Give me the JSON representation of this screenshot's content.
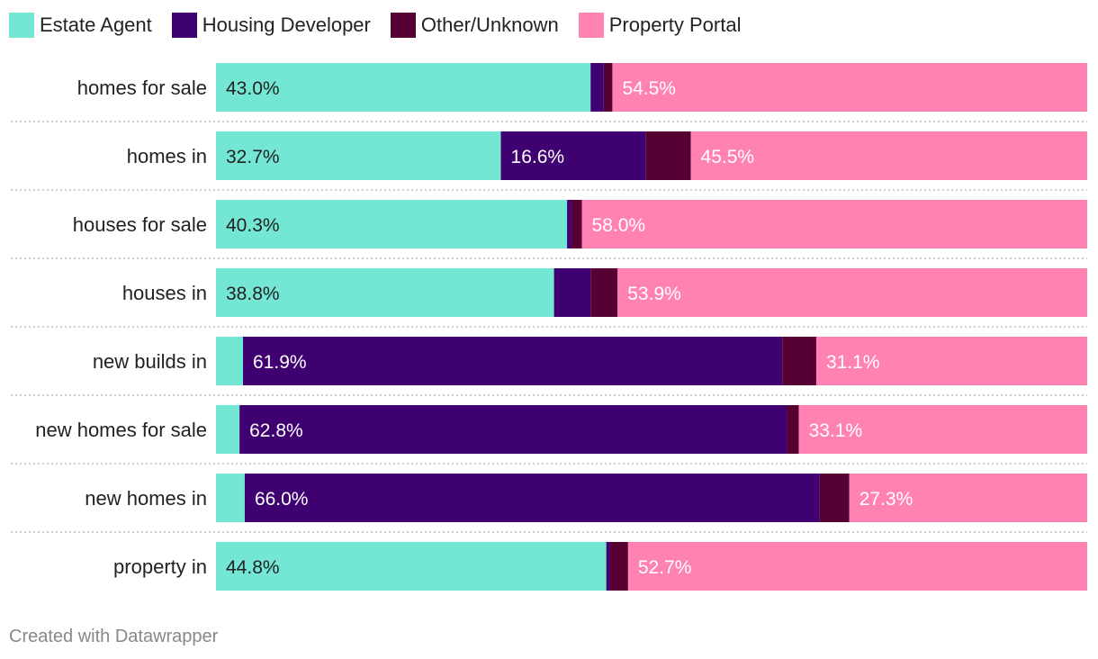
{
  "chart_data": {
    "type": "bar",
    "orientation": "horizontal",
    "stacked": true,
    "normalized": true,
    "xlim": [
      0,
      100
    ],
    "unit": "%",
    "categories": [
      "homes for sale",
      "homes in",
      "houses for sale",
      "houses in",
      "new builds in",
      "new homes for sale",
      "new homes in",
      "property in"
    ],
    "series": [
      {
        "name": "Estate Agent",
        "color": "#74e7d4",
        "text_color": "#222222",
        "values": [
          43.0,
          32.7,
          40.3,
          38.8,
          3.1,
          2.7,
          3.3,
          44.8
        ],
        "labels": [
          "43.0%",
          "32.7%",
          "40.3%",
          "38.8%",
          "",
          "",
          "",
          "44.8%"
        ]
      },
      {
        "name": "Housing Developer",
        "color": "#3f0071",
        "text_color": "#ffffff",
        "values": [
          1.5,
          16.6,
          0.5,
          4.2,
          61.9,
          62.8,
          66.0,
          0.4
        ],
        "labels": [
          "",
          "16.6%",
          "",
          "",
          "61.9%",
          "62.8%",
          "66.0%",
          ""
        ]
      },
      {
        "name": "Other/Unknown",
        "color": "#570034",
        "text_color": "#ffffff",
        "values": [
          1.0,
          5.2,
          1.2,
          3.1,
          3.9,
          1.4,
          3.4,
          2.1
        ],
        "labels": [
          "",
          "",
          "",
          "",
          "",
          "",
          "",
          ""
        ]
      },
      {
        "name": "Property Portal",
        "color": "#ff82b2",
        "text_color": "#ffffff",
        "values": [
          54.5,
          45.5,
          58.0,
          53.9,
          31.1,
          33.1,
          27.3,
          52.7
        ],
        "labels": [
          "54.5%",
          "45.5%",
          "58.0%",
          "53.9%",
          "31.1%",
          "33.1%",
          "27.3%",
          "52.7%"
        ]
      }
    ],
    "legend_position": "top-left",
    "grid": false
  },
  "footer": {
    "credit": "Created with Datawrapper"
  }
}
